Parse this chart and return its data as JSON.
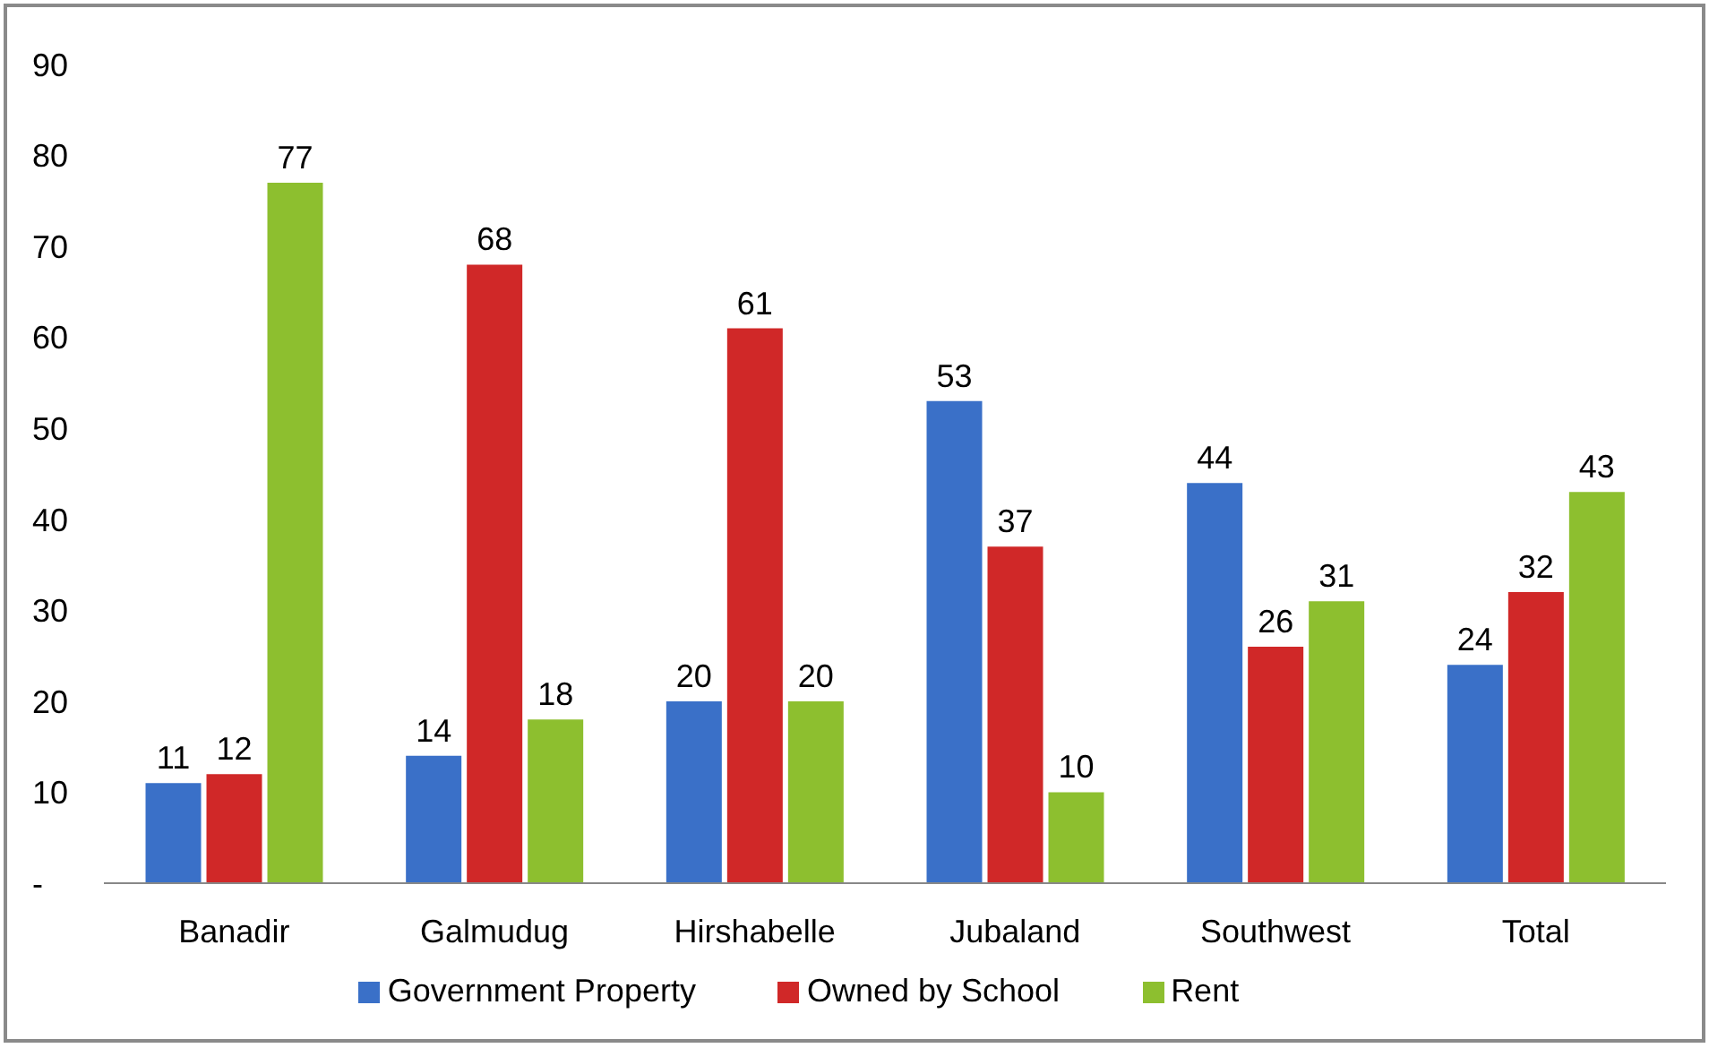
{
  "chart_data": {
    "type": "bar",
    "categories": [
      "Banadir",
      "Galmudug",
      "Hirshabelle",
      "Jubaland",
      "Southwest",
      "Total"
    ],
    "series": [
      {
        "name": "Government Property",
        "color": "#3a70c8",
        "values": [
          11,
          14,
          20,
          53,
          44,
          24
        ]
      },
      {
        "name": "Owned by School",
        "color": "#d02828",
        "values": [
          12,
          68,
          61,
          37,
          26,
          32
        ]
      },
      {
        "name": "Rent",
        "color": "#8dbf2f",
        "values": [
          77,
          18,
          20,
          10,
          31,
          43
        ]
      }
    ],
    "ylim": [
      0,
      90
    ],
    "yticks": [
      {
        "value": 0,
        "label": "-"
      },
      10,
      20,
      30,
      40,
      50,
      60,
      70,
      80,
      90
    ],
    "grid": false,
    "legend": "bottom",
    "data_labels": true
  }
}
